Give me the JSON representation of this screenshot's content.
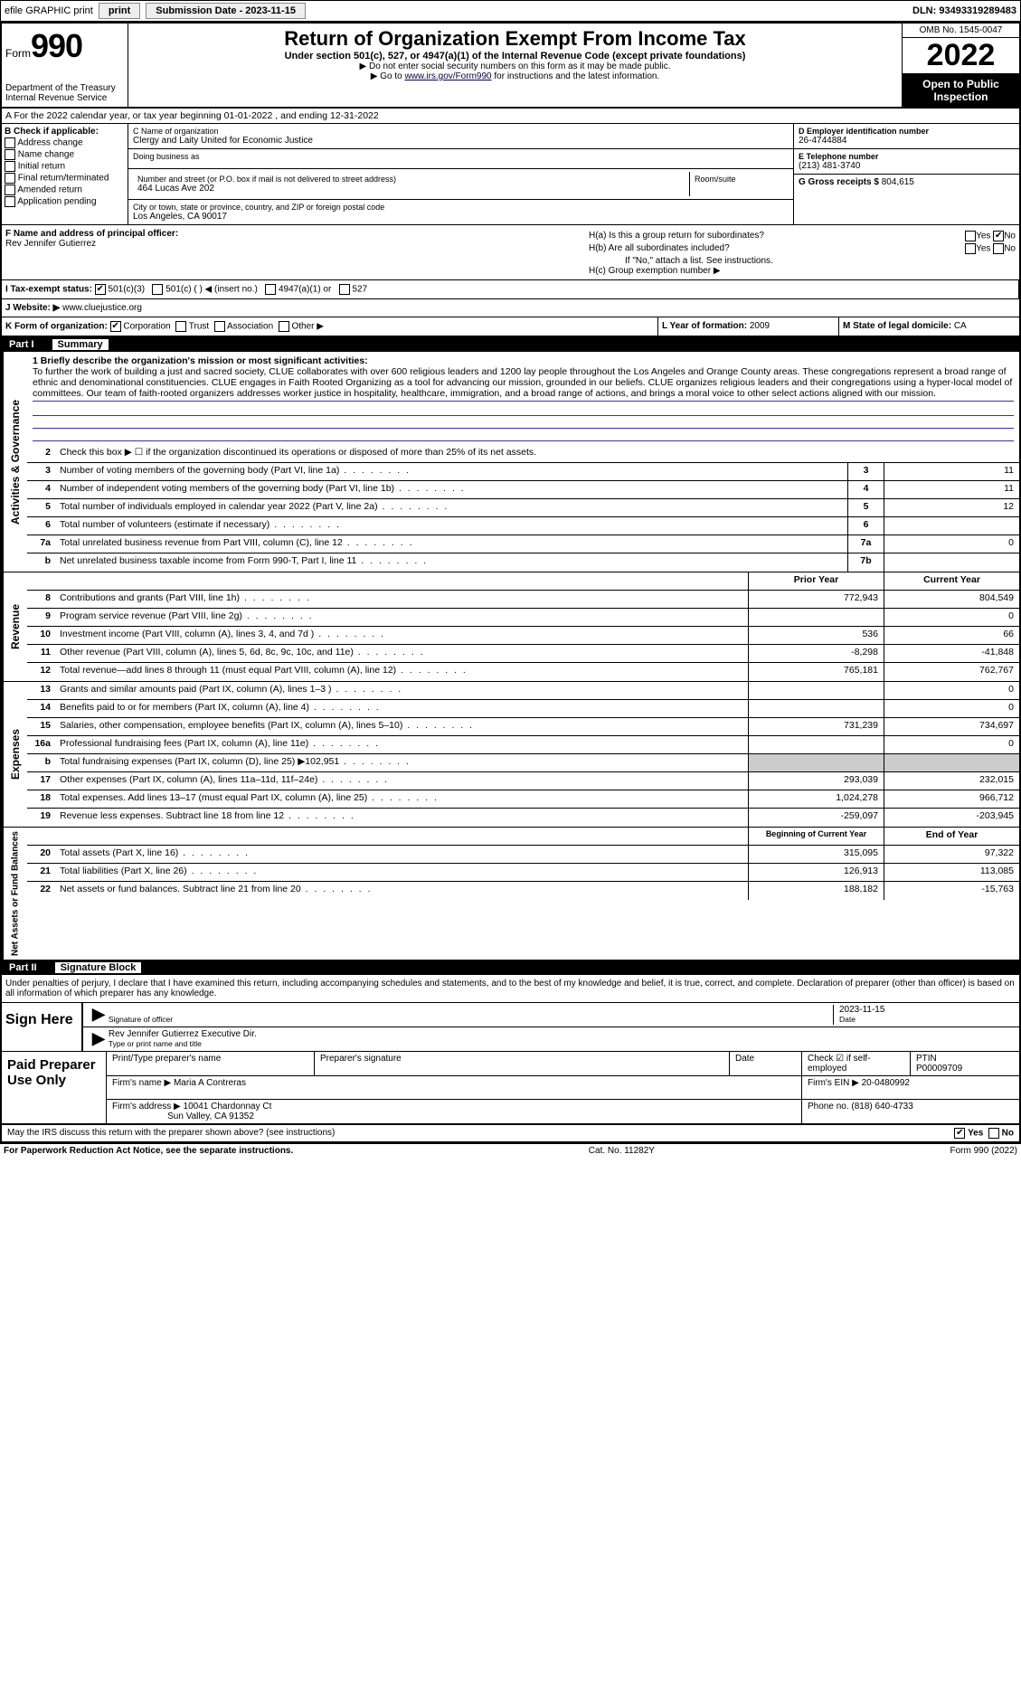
{
  "top": {
    "efile": "efile GRAPHIC print",
    "submission": "Submission Date - 2023-11-15",
    "dln": "DLN: 93493319289483"
  },
  "header": {
    "form_word": "Form",
    "form_num": "990",
    "dept": "Department of the Treasury",
    "irs": "Internal Revenue Service",
    "title": "Return of Organization Exempt From Income Tax",
    "sub": "Under section 501(c), 527, or 4947(a)(1) of the Internal Revenue Code (except private foundations)",
    "note1": "▶ Do not enter social security numbers on this form as it may be made public.",
    "note2_pre": "▶ Go to ",
    "note2_link": "www.irs.gov/Form990",
    "note2_post": " for instructions and the latest information.",
    "omb": "OMB No. 1545-0047",
    "year": "2022",
    "open": "Open to Public Inspection"
  },
  "row_a": "A For the 2022 calendar year, or tax year beginning 01-01-2022  , and ending 12-31-2022",
  "b": {
    "label": "B Check if applicable:",
    "opts": [
      "Address change",
      "Name change",
      "Initial return",
      "Final return/terminated",
      "Amended return",
      "Application pending"
    ]
  },
  "c": {
    "name_label": "C Name of organization",
    "name": "Clergy and Laity United for Economic Justice",
    "dba_label": "Doing business as",
    "dba": "",
    "addr_label": "Number and street (or P.O. box if mail is not delivered to street address)",
    "addr": "464 Lucas Ave 202",
    "room_label": "Room/suite",
    "city_label": "City or town, state or province, country, and ZIP or foreign postal code",
    "city": "Los Angeles, CA  90017"
  },
  "d": {
    "ein_label": "D Employer identification number",
    "ein": "26-4744884",
    "tel_label": "E Telephone number",
    "tel": "(213) 481-3740",
    "gross_label": "G Gross receipts $",
    "gross": "804,615"
  },
  "f": {
    "label": "F  Name and address of principal officer:",
    "name": "Rev Jennifer Gutierrez"
  },
  "h": {
    "a": "H(a)  Is this a group return for subordinates?",
    "b": "H(b)  Are all subordinates included?",
    "bnote": "If \"No,\" attach a list. See instructions.",
    "c": "H(c)  Group exemption number ▶",
    "yes": "Yes",
    "no": "No"
  },
  "i": {
    "label": "I  Tax-exempt status:",
    "o1": "501(c)(3)",
    "o2": "501(c) (  ) ◀ (insert no.)",
    "o3": "4947(a)(1) or",
    "o4": "527"
  },
  "j": {
    "label": "J  Website: ▶",
    "val": "www.cluejustice.org"
  },
  "k": {
    "label": "K Form of organization:",
    "o1": "Corporation",
    "o2": "Trust",
    "o3": "Association",
    "o4": "Other ▶"
  },
  "l": {
    "label": "L Year of formation:",
    "val": "2009"
  },
  "m": {
    "label": "M State of legal domicile:",
    "val": "CA"
  },
  "part1": {
    "num": "Part I",
    "title": "Summary"
  },
  "mission": {
    "q": "1  Briefly describe the organization's mission or most significant activities:",
    "text": "To further the work of building a just and sacred society, CLUE collaborates with over 600 religious leaders and 1200 lay people throughout the Los Angeles and Orange County areas. These congregations represent a broad range of ethnic and denominational constituencies. CLUE engages in Faith Rooted Organizing as a tool for advancing our mission, grounded in our beliefs. CLUE organizes religious leaders and their congregations using a hyper-local model of committees. Our team of faith-rooted organizers addresses worker justice in hospitality, healthcare, immigration, and a broad range of actions, and brings a moral voice to other select actions aligned with our mission."
  },
  "gov": {
    "r2": "Check this box ▶ ☐ if the organization discontinued its operations or disposed of more than 25% of its net assets.",
    "rows": [
      {
        "n": "3",
        "d": "Number of voting members of the governing body (Part VI, line 1a)",
        "k": "3",
        "v": "11"
      },
      {
        "n": "4",
        "d": "Number of independent voting members of the governing body (Part VI, line 1b)",
        "k": "4",
        "v": "11"
      },
      {
        "n": "5",
        "d": "Total number of individuals employed in calendar year 2022 (Part V, line 2a)",
        "k": "5",
        "v": "12"
      },
      {
        "n": "6",
        "d": "Total number of volunteers (estimate if necessary)",
        "k": "6",
        "v": ""
      },
      {
        "n": "7a",
        "d": "Total unrelated business revenue from Part VIII, column (C), line 12",
        "k": "7a",
        "v": "0"
      },
      {
        "n": "b",
        "d": "Net unrelated business taxable income from Form 990-T, Part I, line 11",
        "k": "7b",
        "v": ""
      }
    ]
  },
  "rev": {
    "hdr_prior": "Prior Year",
    "hdr_curr": "Current Year",
    "rows": [
      {
        "n": "8",
        "d": "Contributions and grants (Part VIII, line 1h)",
        "p": "772,943",
        "c": "804,549"
      },
      {
        "n": "9",
        "d": "Program service revenue (Part VIII, line 2g)",
        "p": "",
        "c": "0"
      },
      {
        "n": "10",
        "d": "Investment income (Part VIII, column (A), lines 3, 4, and 7d )",
        "p": "536",
        "c": "66"
      },
      {
        "n": "11",
        "d": "Other revenue (Part VIII, column (A), lines 5, 6d, 8c, 9c, 10c, and 11e)",
        "p": "-8,298",
        "c": "-41,848"
      },
      {
        "n": "12",
        "d": "Total revenue—add lines 8 through 11 (must equal Part VIII, column (A), line 12)",
        "p": "765,181",
        "c": "762,767"
      }
    ]
  },
  "exp": {
    "rows": [
      {
        "n": "13",
        "d": "Grants and similar amounts paid (Part IX, column (A), lines 1–3 )",
        "p": "",
        "c": "0"
      },
      {
        "n": "14",
        "d": "Benefits paid to or for members (Part IX, column (A), line 4)",
        "p": "",
        "c": "0"
      },
      {
        "n": "15",
        "d": "Salaries, other compensation, employee benefits (Part IX, column (A), lines 5–10)",
        "p": "731,239",
        "c": "734,697"
      },
      {
        "n": "16a",
        "d": "Professional fundraising fees (Part IX, column (A), line 11e)",
        "p": "",
        "c": "0"
      },
      {
        "n": "b",
        "d": "Total fundraising expenses (Part IX, column (D), line 25) ▶102,951",
        "p": "shade",
        "c": "shade"
      },
      {
        "n": "17",
        "d": "Other expenses (Part IX, column (A), lines 11a–11d, 11f–24e)",
        "p": "293,039",
        "c": "232,015"
      },
      {
        "n": "18",
        "d": "Total expenses. Add lines 13–17 (must equal Part IX, column (A), line 25)",
        "p": "1,024,278",
        "c": "966,712"
      },
      {
        "n": "19",
        "d": "Revenue less expenses. Subtract line 18 from line 12",
        "p": "-259,097",
        "c": "-203,945"
      }
    ]
  },
  "net": {
    "hdr_prior": "Beginning of Current Year",
    "hdr_curr": "End of Year",
    "rows": [
      {
        "n": "20",
        "d": "Total assets (Part X, line 16)",
        "p": "315,095",
        "c": "97,322"
      },
      {
        "n": "21",
        "d": "Total liabilities (Part X, line 26)",
        "p": "126,913",
        "c": "113,085"
      },
      {
        "n": "22",
        "d": "Net assets or fund balances. Subtract line 21 from line 20",
        "p": "188,182",
        "c": "-15,763"
      }
    ]
  },
  "part2": {
    "num": "Part II",
    "title": "Signature Block"
  },
  "sig": {
    "perjury": "Under penalties of perjury, I declare that I have examined this return, including accompanying schedules and statements, and to the best of my knowledge and belief, it is true, correct, and complete. Declaration of preparer (other than officer) is based on all information of which preparer has any knowledge.",
    "sign_here": "Sign Here",
    "sig_officer": "Signature of officer",
    "date": "Date",
    "date_val": "2023-11-15",
    "name_title": "Rev Jennifer Gutierrez Executive Dir.",
    "type_name": "Type or print name and title"
  },
  "prep": {
    "title": "Paid Preparer Use Only",
    "h1": "Print/Type preparer's name",
    "h2": "Preparer's signature",
    "h3": "Date",
    "h4": "Check ☑ if self-employed",
    "h5": "PTIN",
    "ptin": "P00009709",
    "firm_name_l": "Firm's name    ▶",
    "firm_name": "Maria A Contreras",
    "firm_ein_l": "Firm's EIN ▶",
    "firm_ein": "20-0480992",
    "firm_addr_l": "Firm's address ▶",
    "firm_addr1": "10041 Chardonnay Ct",
    "firm_addr2": "Sun Valley, CA  91352",
    "phone_l": "Phone no.",
    "phone": "(818) 640-4733"
  },
  "footer": {
    "discuss": "May the IRS discuss this return with the preparer shown above? (see instructions)",
    "yes": "Yes",
    "no": "No",
    "paperwork": "For Paperwork Reduction Act Notice, see the separate instructions.",
    "cat": "Cat. No. 11282Y",
    "form": "Form 990 (2022)"
  }
}
